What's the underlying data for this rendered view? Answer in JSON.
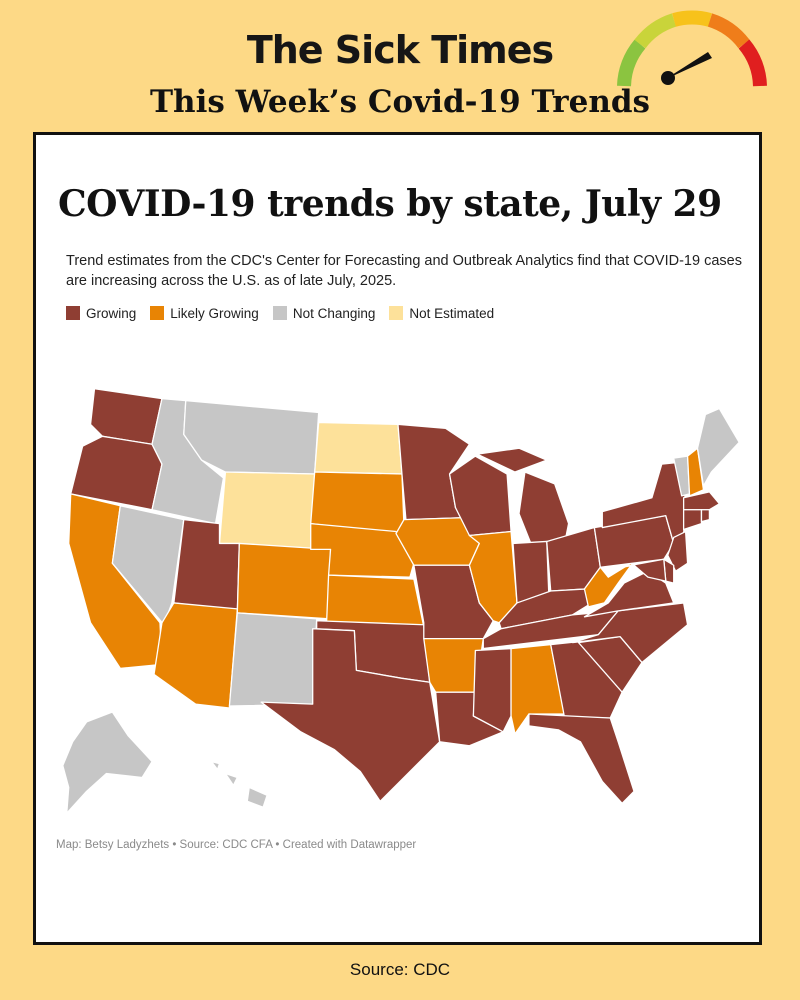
{
  "header": {
    "brand": "The Sick Times",
    "headline": "This Week’s Covid-19 Trends"
  },
  "card": {
    "title": "COVID-19 trends by state, July 29",
    "description": "Trend estimates from the CDC's Center for Forecasting and Outbreak Analytics find that COVID-19 cases are increasing across the U.S. as of late July, 2025.",
    "credit": "Map: Betsy Ladyzhets • Source: CDC CFA • Created with Datawrapper"
  },
  "legend": [
    {
      "label": "Growing",
      "color": "#8f3e33"
    },
    {
      "label": "Likely Growing",
      "color": "#e88404"
    },
    {
      "label": "Not Changing",
      "color": "#c6c6c6"
    },
    {
      "label": "Not Estimated",
      "color": "#fde19a"
    }
  ],
  "colors": {
    "growing": "#8f3e33",
    "likely": "#e88404",
    "nochange": "#c6c6c6",
    "notest": "#fde19a"
  },
  "states": {
    "WA": "growing",
    "OR": "growing",
    "CA": "likely",
    "NV": "nochange",
    "ID": "nochange",
    "MT": "nochange",
    "WY": "notest",
    "UT": "growing",
    "AZ": "likely",
    "CO": "likely",
    "NM": "nochange",
    "ND": "notest",
    "SD": "likely",
    "NE": "likely",
    "KS": "likely",
    "OK": "growing",
    "TX": "growing",
    "MN": "growing",
    "IA": "likely",
    "MO": "growing",
    "AR": "likely",
    "LA": "growing",
    "WI": "growing",
    "IL": "likely",
    "MI": "growing",
    "IN": "growing",
    "OH": "growing",
    "KY": "growing",
    "TN": "growing",
    "MS": "growing",
    "AL": "likely",
    "GA": "growing",
    "FL": "growing",
    "SC": "growing",
    "NC": "growing",
    "VA": "growing",
    "WV": "likely",
    "PA": "growing",
    "NY": "growing",
    "VT": "nochange",
    "NH": "likely",
    "ME": "nochange",
    "MA": "growing",
    "CT": "growing",
    "RI": "growing",
    "NJ": "growing",
    "DE": "growing",
    "MD": "growing",
    "AK": "nochange",
    "HI": "nochange"
  },
  "footer": {
    "source": "Source: CDC"
  }
}
